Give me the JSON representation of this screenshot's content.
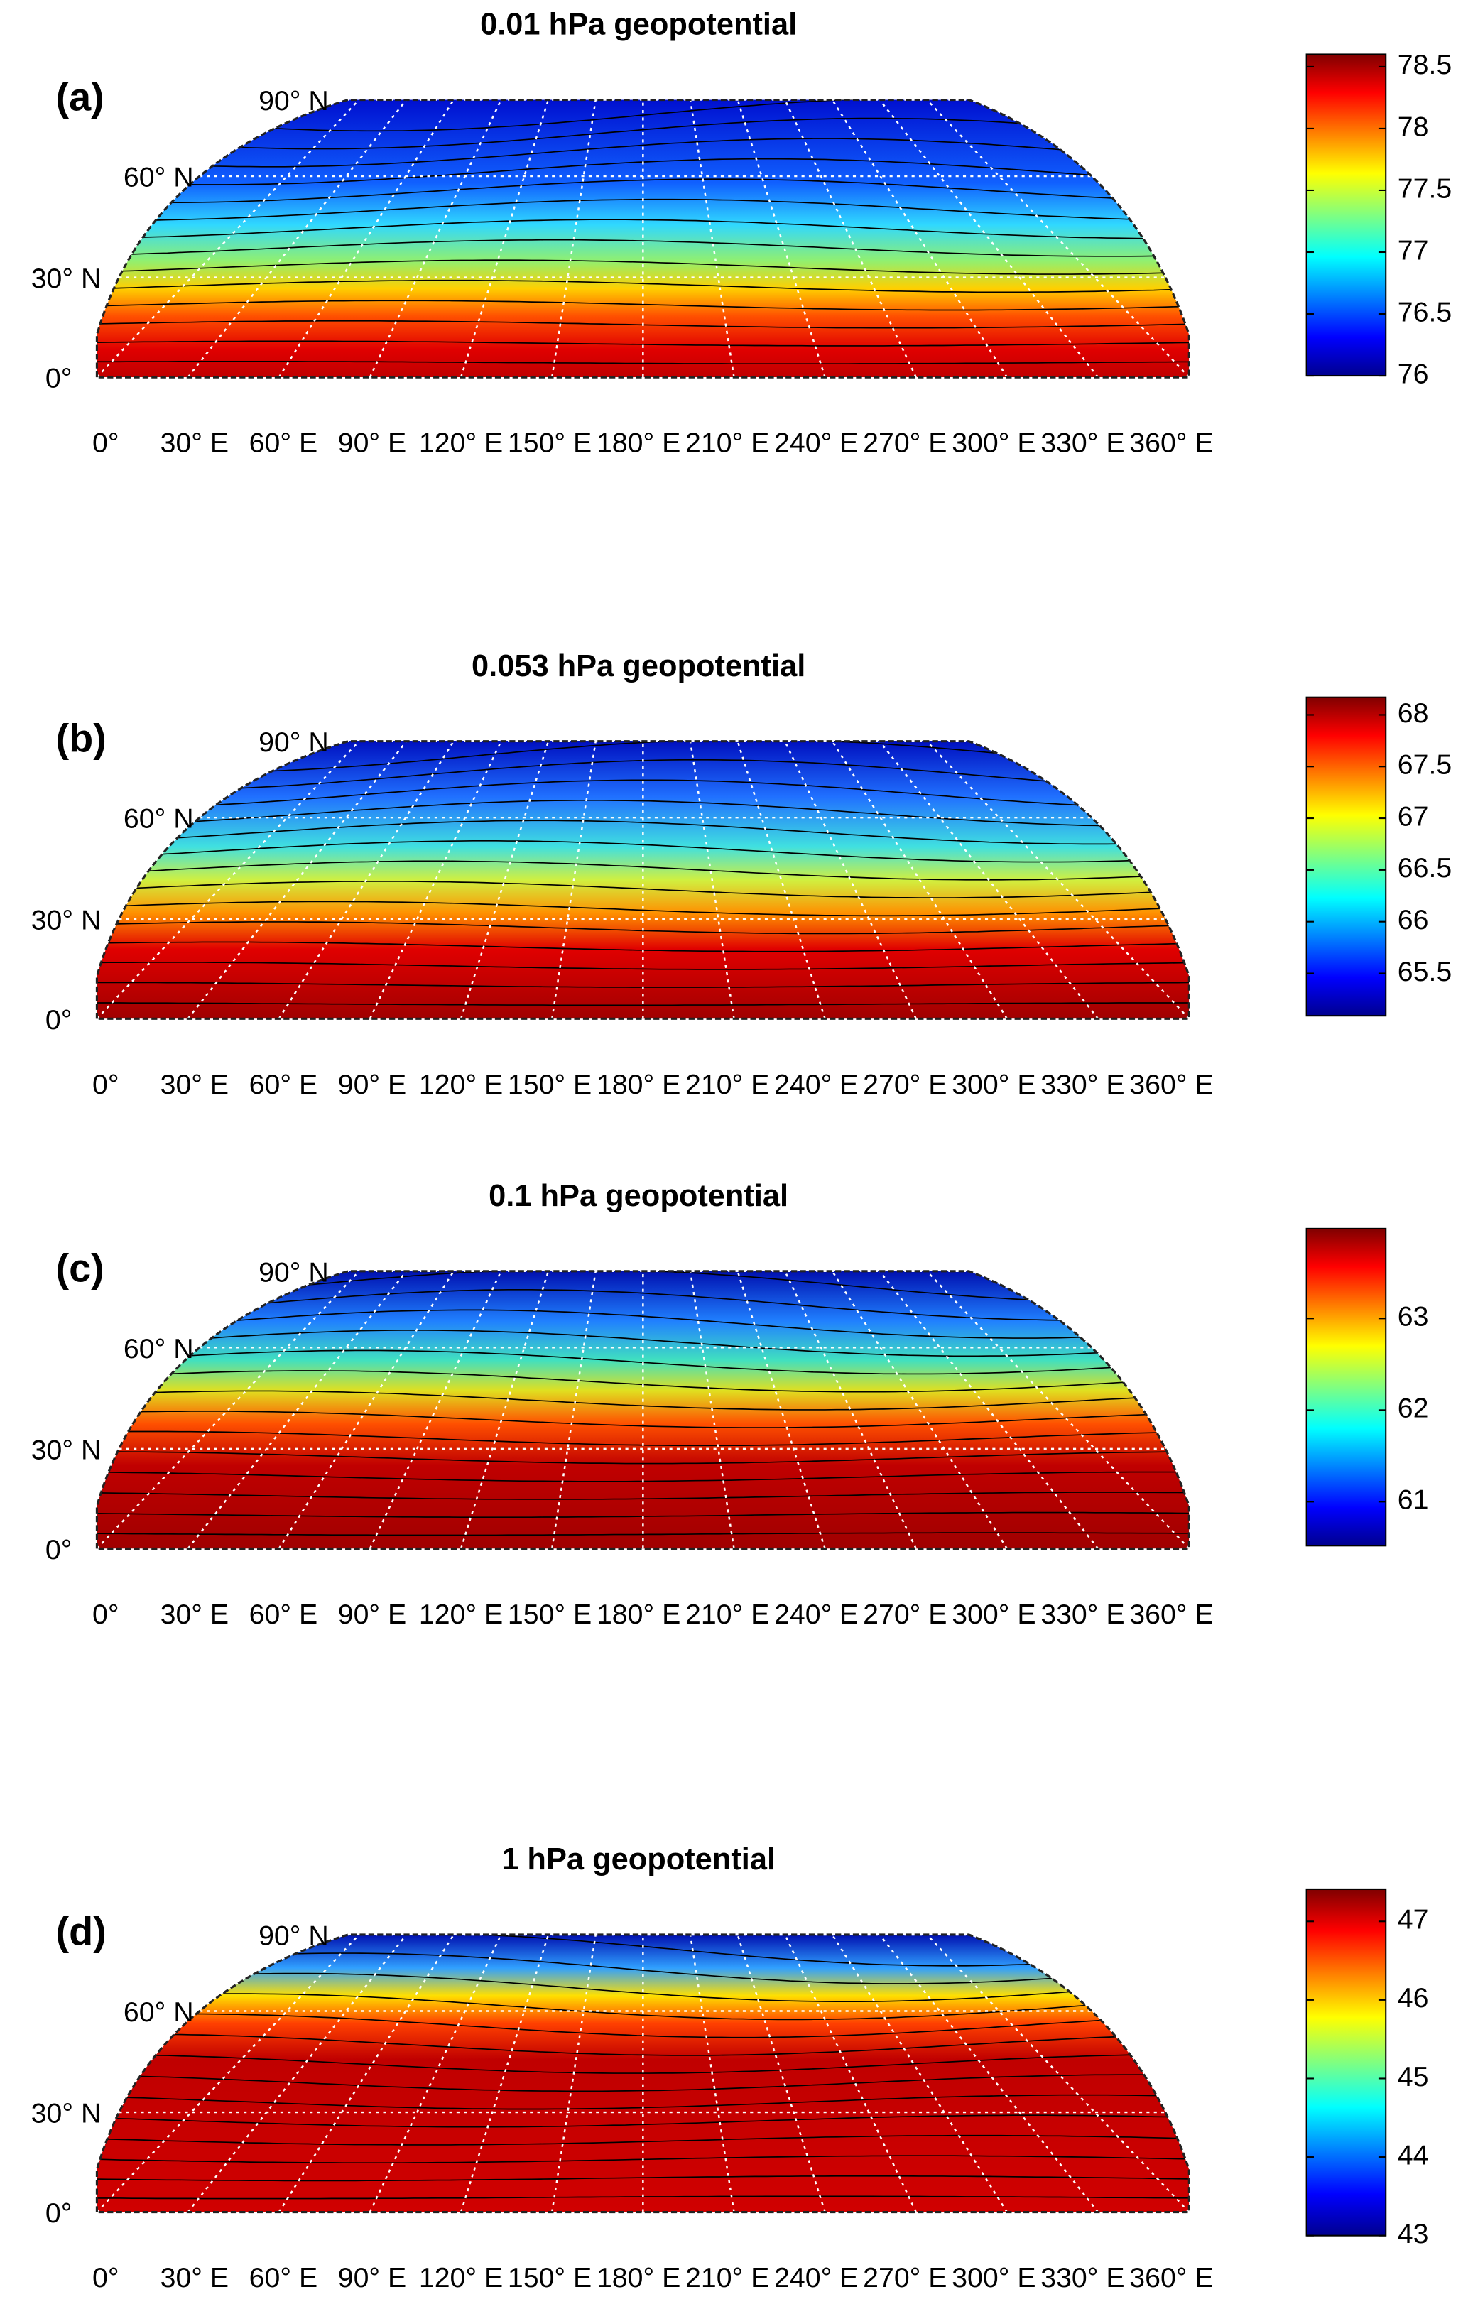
{
  "panels": [
    {
      "panel_label": "(a)",
      "title": "0.01 hPa geopotential",
      "lat_labels": [
        "90° N",
        "60° N",
        "30° N",
        "0°"
      ],
      "lon_labels": [
        "0°",
        "30° E",
        "60° E",
        "90° E",
        "120° E",
        "150° E",
        "180° E",
        "210° E",
        "240° E",
        "270° E",
        "300° E",
        "330° E",
        "360° E"
      ],
      "colorbar": {
        "lim": [
          76,
          78.6
        ],
        "ticks": [
          76,
          76.5,
          77,
          77.5,
          78,
          78.5
        ]
      }
    },
    {
      "panel_label": "(b)",
      "title": "0.053 hPa geopotential",
      "lat_labels": [
        "90° N",
        "60° N",
        "30° N",
        "0°"
      ],
      "lon_labels": [
        "0°",
        "30° E",
        "60° E",
        "90° E",
        "120° E",
        "150° E",
        "180° E",
        "210° E",
        "240° E",
        "270° E",
        "300° E",
        "330° E",
        "360° E"
      ],
      "colorbar": {
        "lim": [
          65.09,
          68.17
        ],
        "ticks": [
          65.5,
          66,
          66.5,
          67,
          67.5,
          68
        ]
      }
    },
    {
      "panel_label": "(c)",
      "title": "0.1 hPa geopotential",
      "lat_labels": [
        "90° N",
        "60° N",
        "30° N",
        "0°"
      ],
      "lon_labels": [
        "0°",
        "30° E",
        "60° E",
        "90° E",
        "120° E",
        "150° E",
        "180° E",
        "210° E",
        "240° E",
        "270° E",
        "300° E",
        "330° E",
        "360° E"
      ],
      "colorbar": {
        "lim": [
          60.52,
          63.98
        ],
        "ticks": [
          61,
          62,
          63
        ]
      }
    },
    {
      "panel_label": "(d)",
      "title": "1 hPa geopotential",
      "lat_labels": [
        "90° N",
        "60° N",
        "30° N",
        "0°"
      ],
      "lon_labels": [
        "0°",
        "30° E",
        "60° E",
        "90° E",
        "120° E",
        "150° E",
        "180° E",
        "210° E",
        "240° E",
        "270° E",
        "300° E",
        "330° E",
        "360° E"
      ],
      "colorbar": {
        "lim": [
          43,
          47.41
        ],
        "ticks": [
          43,
          44,
          45,
          46,
          47
        ]
      }
    }
  ]
}
